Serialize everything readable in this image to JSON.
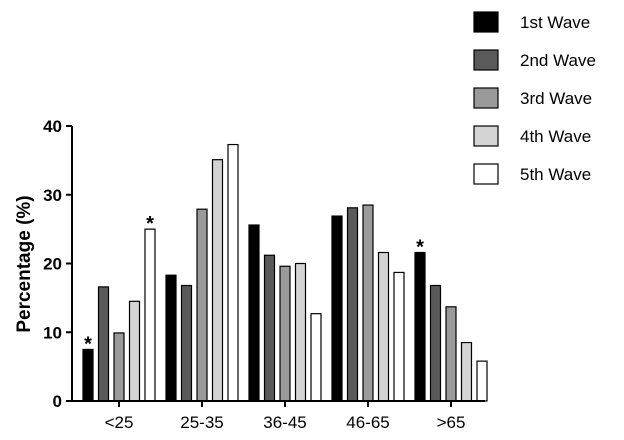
{
  "chart_data": {
    "type": "bar",
    "title": "",
    "xlabel": "",
    "ylabel": "Percentage (%)",
    "ylim": [
      0,
      40
    ],
    "yticks": [
      0,
      10,
      20,
      30,
      40
    ],
    "grid": false,
    "legend_position": "top-right",
    "categories": [
      "<25",
      "25-35",
      "36-45",
      "46-65",
      ">65"
    ],
    "series": [
      {
        "name": "1st Wave",
        "color": "#000000",
        "values": [
          7.5,
          18.3,
          25.6,
          26.9,
          21.6
        ]
      },
      {
        "name": "2nd Wave",
        "color": "#5a5a5a",
        "values": [
          16.6,
          16.8,
          21.2,
          28.1,
          16.8
        ]
      },
      {
        "name": "3rd Wave",
        "color": "#9a9a9a",
        "values": [
          9.9,
          27.9,
          19.6,
          28.5,
          13.7
        ]
      },
      {
        "name": "4th Wave",
        "color": "#d4d4d4",
        "values": [
          14.5,
          35.1,
          20.0,
          21.6,
          8.5
        ]
      },
      {
        "name": "5th Wave",
        "color": "#ffffff",
        "values": [
          25.0,
          37.3,
          12.7,
          18.7,
          5.8
        ]
      }
    ],
    "annotations": [
      {
        "text": "*",
        "category": "<25",
        "series": "1st Wave"
      },
      {
        "text": "*",
        "category": "<25",
        "series": "5th Wave"
      },
      {
        "text": "*",
        "category": ">65",
        "series": "1st Wave"
      }
    ]
  }
}
